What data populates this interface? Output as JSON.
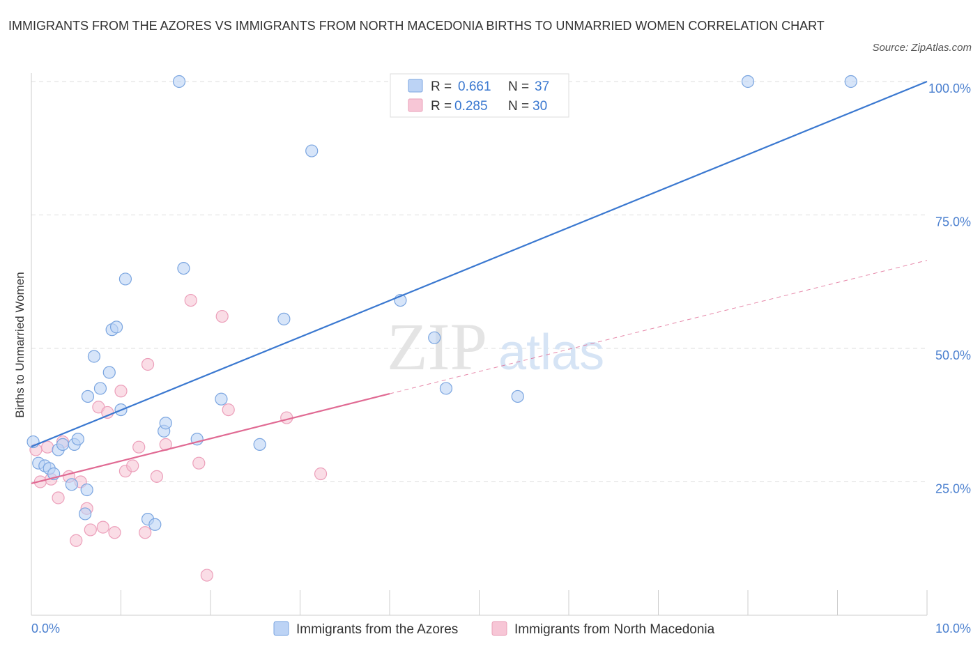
{
  "title": "IMMIGRANTS FROM THE AZORES VS IMMIGRANTS FROM NORTH MACEDONIA BIRTHS TO UNMARRIED WOMEN CORRELATION CHART",
  "source": "Source: ZipAtlas.com",
  "colors": {
    "azores": "#3a78d0",
    "azores_fill": "#bcd3f5",
    "macedonia": "#e06a93",
    "macedonia_fill": "#f7c6d6",
    "grid": "#dddddd"
  },
  "legend": {
    "r_label": "R =",
    "n_label": "N =",
    "azores": {
      "r": "0.661",
      "n": "37"
    },
    "macedonia": {
      "r": "0.285",
      "n": "30"
    }
  },
  "watermark": {
    "zip": "ZIP",
    "atlas": "atlas"
  },
  "chart_data": {
    "type": "scatter",
    "ylabel": "Births to Unmarried Women",
    "xlim": [
      0,
      10
    ],
    "ylim": [
      0,
      100
    ],
    "x_tick_labels": [
      {
        "value": 0,
        "label": "0.0%"
      },
      {
        "value": 10,
        "label": "10.0%"
      }
    ],
    "y_tick_labels": [
      {
        "value": 25,
        "label": "25.0%"
      },
      {
        "value": 50,
        "label": "50.0%"
      },
      {
        "value": 75,
        "label": "75.0%"
      },
      {
        "value": 100,
        "label": "100.0%"
      }
    ],
    "grid": true,
    "legend_position": "top-center",
    "series": [
      {
        "name": "Immigrants from the Azores",
        "points": [
          [
            0.02,
            32.5
          ],
          [
            0.08,
            28.5
          ],
          [
            0.15,
            28.0
          ],
          [
            0.2,
            27.5
          ],
          [
            0.25,
            26.5
          ],
          [
            0.3,
            31.0
          ],
          [
            0.35,
            32.0
          ],
          [
            0.45,
            24.5
          ],
          [
            0.48,
            32.0
          ],
          [
            0.52,
            33.0
          ],
          [
            0.6,
            19.0
          ],
          [
            0.62,
            23.5
          ],
          [
            0.63,
            41.0
          ],
          [
            0.7,
            48.5
          ],
          [
            0.77,
            42.5
          ],
          [
            0.87,
            45.5
          ],
          [
            0.9,
            53.5
          ],
          [
            0.95,
            54.0
          ],
          [
            1.0,
            38.5
          ],
          [
            1.05,
            63.0
          ],
          [
            1.3,
            18.0
          ],
          [
            1.38,
            17.0
          ],
          [
            1.48,
            34.5
          ],
          [
            1.5,
            36.0
          ],
          [
            1.65,
            100.0
          ],
          [
            1.7,
            65.0
          ],
          [
            1.85,
            33.0
          ],
          [
            2.12,
            40.5
          ],
          [
            2.55,
            32.0
          ],
          [
            2.82,
            55.5
          ],
          [
            3.13,
            87.0
          ],
          [
            4.12,
            59.0
          ],
          [
            4.5,
            52.0
          ],
          [
            4.63,
            42.5
          ],
          [
            5.43,
            41.0
          ],
          [
            8.0,
            100.0
          ],
          [
            9.15,
            100.0
          ]
        ],
        "trendline": {
          "x": [
            0.0,
            10.0
          ],
          "y": [
            31.6,
            100.0
          ]
        }
      },
      {
        "name": "Immigrants from North Macedonia",
        "points": [
          [
            0.05,
            31.0
          ],
          [
            0.1,
            25.0
          ],
          [
            0.18,
            31.5
          ],
          [
            0.22,
            25.5
          ],
          [
            0.3,
            22.0
          ],
          [
            0.35,
            32.5
          ],
          [
            0.42,
            26.0
          ],
          [
            0.5,
            14.0
          ],
          [
            0.55,
            25.0
          ],
          [
            0.62,
            20.0
          ],
          [
            0.66,
            16.0
          ],
          [
            0.75,
            39.0
          ],
          [
            0.8,
            16.5
          ],
          [
            0.85,
            38.0
          ],
          [
            0.93,
            15.5
          ],
          [
            1.0,
            42.0
          ],
          [
            1.05,
            27.0
          ],
          [
            1.13,
            28.0
          ],
          [
            1.2,
            31.5
          ],
          [
            1.27,
            15.5
          ],
          [
            1.3,
            47.0
          ],
          [
            1.4,
            26.0
          ],
          [
            1.5,
            32.0
          ],
          [
            1.78,
            59.0
          ],
          [
            1.87,
            28.5
          ],
          [
            1.96,
            7.5
          ],
          [
            2.13,
            56.0
          ],
          [
            2.2,
            38.5
          ],
          [
            2.85,
            37.0
          ],
          [
            3.23,
            26.5
          ]
        ],
        "trendline": {
          "x": [
            0.0,
            4.0
          ],
          "y": [
            24.7,
            41.5
          ]
        },
        "trendline_extension": {
          "x": [
            4.0,
            10.0
          ],
          "y": [
            41.5,
            66.5
          ]
        }
      }
    ]
  },
  "bottom_legend": {
    "azores_label": "Immigrants from the Azores",
    "macedonia_label": "Immigrants from North Macedonia"
  }
}
